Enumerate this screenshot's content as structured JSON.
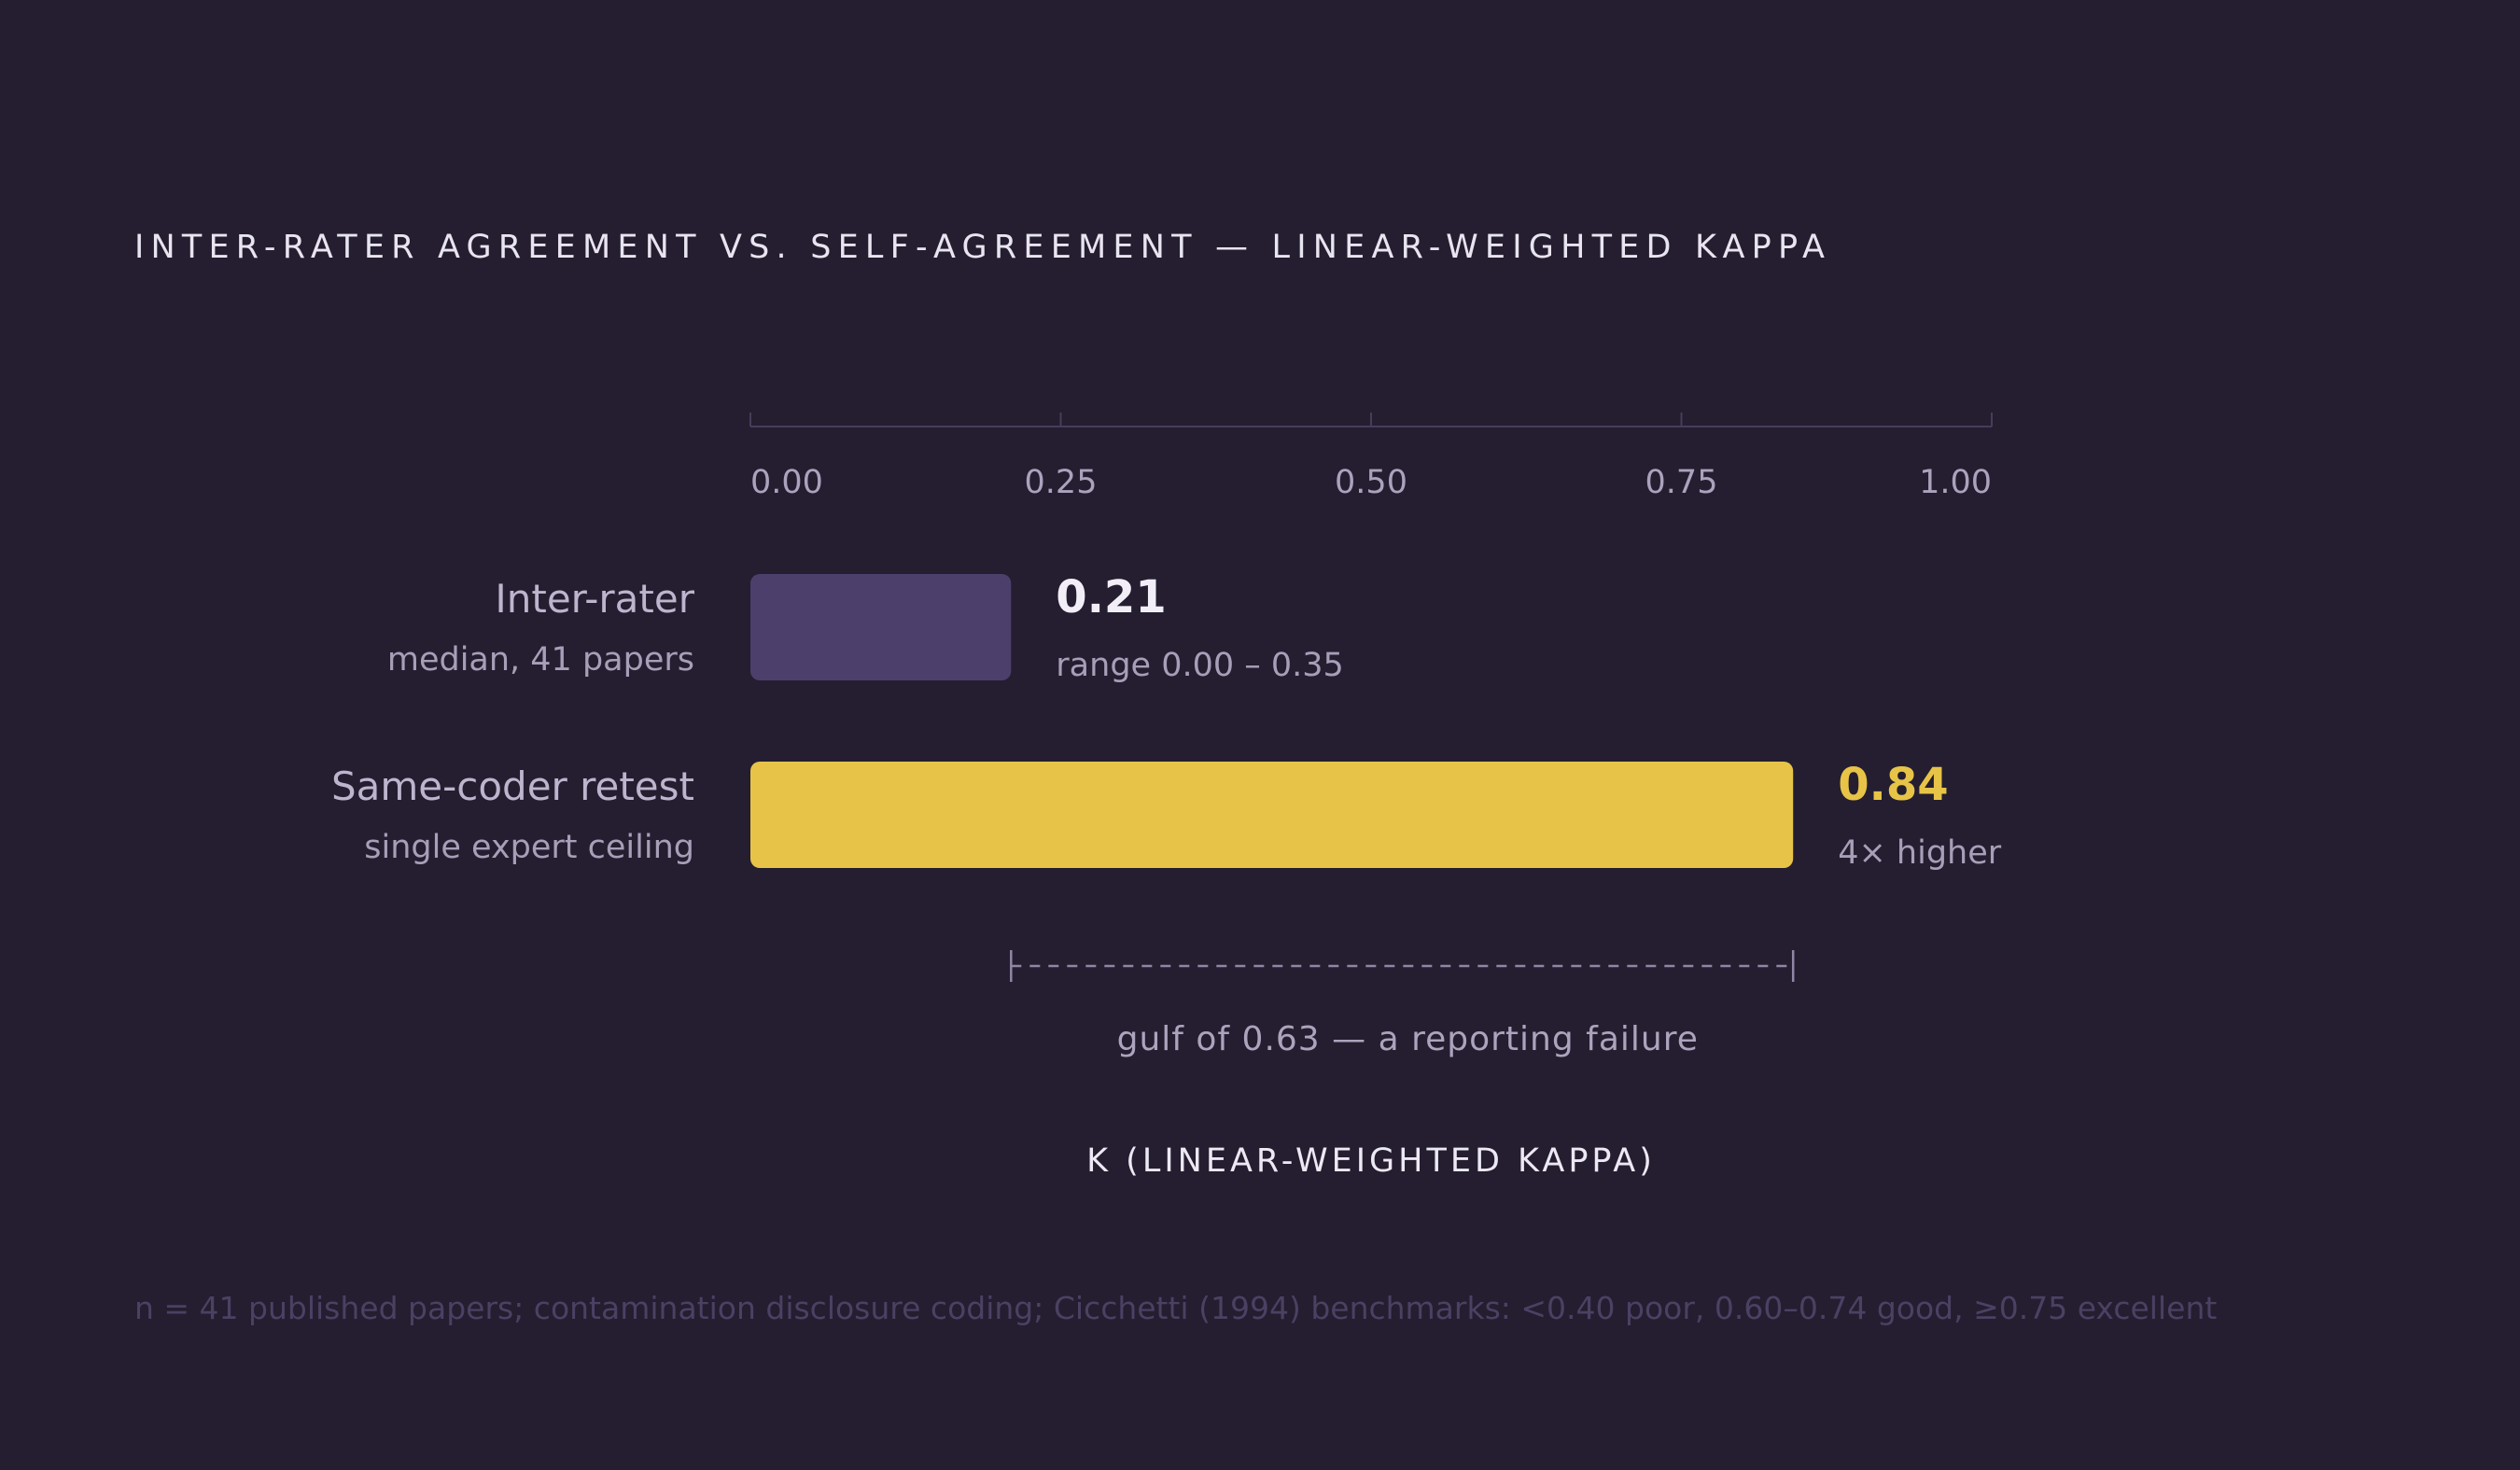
{
  "chart_data": {
    "type": "bar",
    "orientation": "horizontal",
    "title": "INTER-RATER AGREEMENT VS. SELF-AGREEMENT — LINEAR-WEIGHTED KAPPA",
    "xlabel": "K (LINEAR-WEIGHTED KAPPA)",
    "xlim": [
      0,
      1
    ],
    "ticks": [
      "0.00",
      "0.25",
      "0.50",
      "0.75",
      "1.00"
    ],
    "categories": [
      "Inter-rater",
      "Same-coder retest"
    ],
    "sublabels": [
      "median, 41 papers",
      "single expert ceiling"
    ],
    "values": [
      0.21,
      0.84
    ],
    "value_labels": [
      "0.21",
      "0.84"
    ],
    "notes": [
      "range 0.00 – 0.35",
      "4× higher"
    ],
    "colors": [
      "#4c3f6c",
      "#e7c447"
    ],
    "value_label_colors": [
      "#f2eef8",
      "#e7c447"
    ],
    "gap": {
      "from": 0.21,
      "to": 0.84,
      "label": "gulf of 0.63 — a reporting failure"
    },
    "footnote": "n = 41 published papers; contamination disclosure coding; Cicchetti (1994) benchmarks: <0.40 poor, 0.60–0.74 good, ≥0.75 excellent",
    "grid": false
  }
}
